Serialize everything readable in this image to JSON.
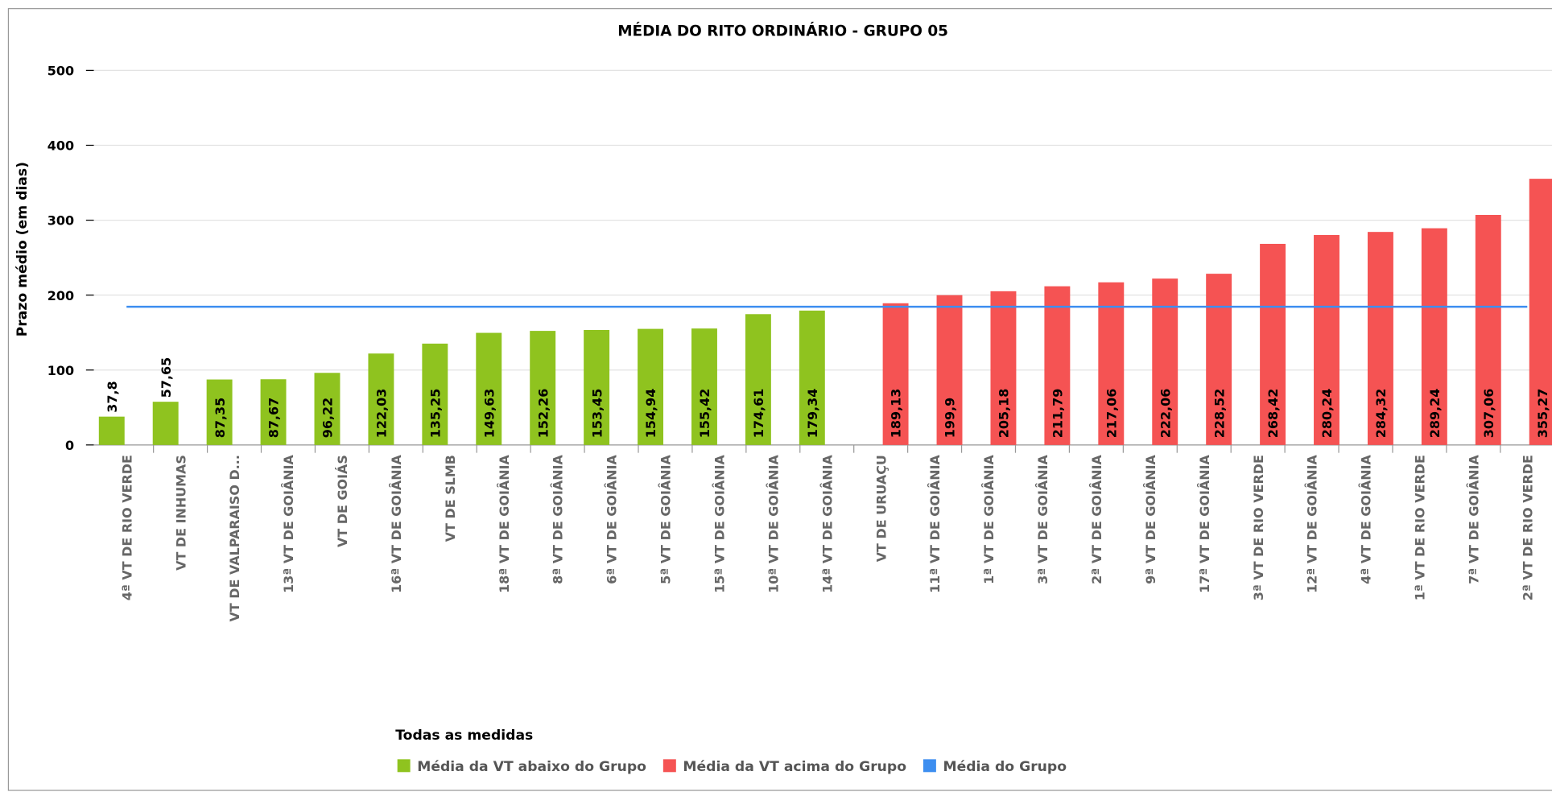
{
  "chart_data": {
    "type": "bar",
    "title": "MÉDIA DO RITO ORDINÁRIO - GRUPO 05",
    "y_label": "Prazo médio (em dias)",
    "legend_title": "Todas as medidas",
    "categories": [
      "4ª VT DE RIO VERDE",
      "VT DE INHUMAS",
      "VT DE VALPARAISO D...",
      "13ª VT DE GOIÂNIA",
      "VT DE GOIÁS",
      "16ª VT DE GOIÂNIA",
      "VT DE SLMB",
      "18ª VT DE GOIÂNIA",
      "8ª VT DE GOIÂNIA",
      "6ª VT DE GOIÂNIA",
      "5ª VT DE GOIÂNIA",
      "15ª VT DE GOIÂNIA",
      "10ª VT DE GOIÂNIA",
      "14ª VT DE GOIÂNIA",
      "VT DE URUAÇU",
      "11ª VT DE GOIÂNIA",
      "1ª VT DE GOIÂNIA",
      "3ª VT DE GOIÂNIA",
      "2ª VT DE GOIÂNIA",
      "9ª VT DE GOIÂNIA",
      "17ª VT DE GOIÂNIA",
      "3ª VT DE RIO VERDE",
      "12ª VT DE GOIÂNIA",
      "4ª VT DE GOIÂNIA",
      "1ª VT DE RIO VERDE",
      "7ª VT DE GOIÂNIA",
      "2ª VT DE RIO VERDE"
    ],
    "series": [
      {
        "name": "Média da VT abaixo do Grupo",
        "color": "#8fc31f",
        "values": [
          37.8,
          57.65,
          87.35,
          87.67,
          96.22,
          122.03,
          135.25,
          149.63,
          152.26,
          153.45,
          154.94,
          155.42,
          174.61,
          179.34,
          null,
          null,
          null,
          null,
          null,
          null,
          null,
          null,
          null,
          null,
          null,
          null,
          null
        ],
        "value_labels": [
          "37,8",
          "57,65",
          "87,35",
          "87,67",
          "96,22",
          "122,03",
          "135,25",
          "149,63",
          "152,26",
          "153,45",
          "154,94",
          "155,42",
          "174,61",
          "179,34",
          null,
          null,
          null,
          null,
          null,
          null,
          null,
          null,
          null,
          null,
          null,
          null,
          null
        ]
      },
      {
        "name": "Média da VT acima do Grupo",
        "color": "#f55353",
        "values": [
          null,
          null,
          null,
          null,
          null,
          null,
          null,
          null,
          null,
          null,
          null,
          null,
          null,
          null,
          189.13,
          199.9,
          205.18,
          211.79,
          217.06,
          222.06,
          228.52,
          268.42,
          280.24,
          284.32,
          289.24,
          307.06,
          355.27
        ],
        "value_labels": [
          null,
          null,
          null,
          null,
          null,
          null,
          null,
          null,
          null,
          null,
          null,
          null,
          null,
          null,
          "189,13",
          "199,9",
          "205,18",
          "211,79",
          "217,06",
          "222,06",
          "228,52",
          "268,42",
          "280,24",
          "284,32",
          "289,24",
          "307,06",
          "355,27"
        ]
      },
      {
        "name": "Média do Grupo",
        "color": "#3d8ef0",
        "line": true,
        "values": [
          184.5,
          184.5,
          184.5,
          184.5,
          184.5,
          184.5,
          184.5,
          184.5,
          184.5,
          184.5,
          184.5,
          184.5,
          184.5,
          184.5,
          184.5,
          184.5,
          184.5,
          184.5,
          184.5,
          184.5,
          184.5,
          184.5,
          184.5,
          184.5,
          184.5,
          184.5,
          184.5
        ]
      }
    ],
    "ylim": [
      0,
      500
    ],
    "yticks": [
      0,
      100,
      200,
      300,
      400,
      500
    ],
    "grid": true
  }
}
